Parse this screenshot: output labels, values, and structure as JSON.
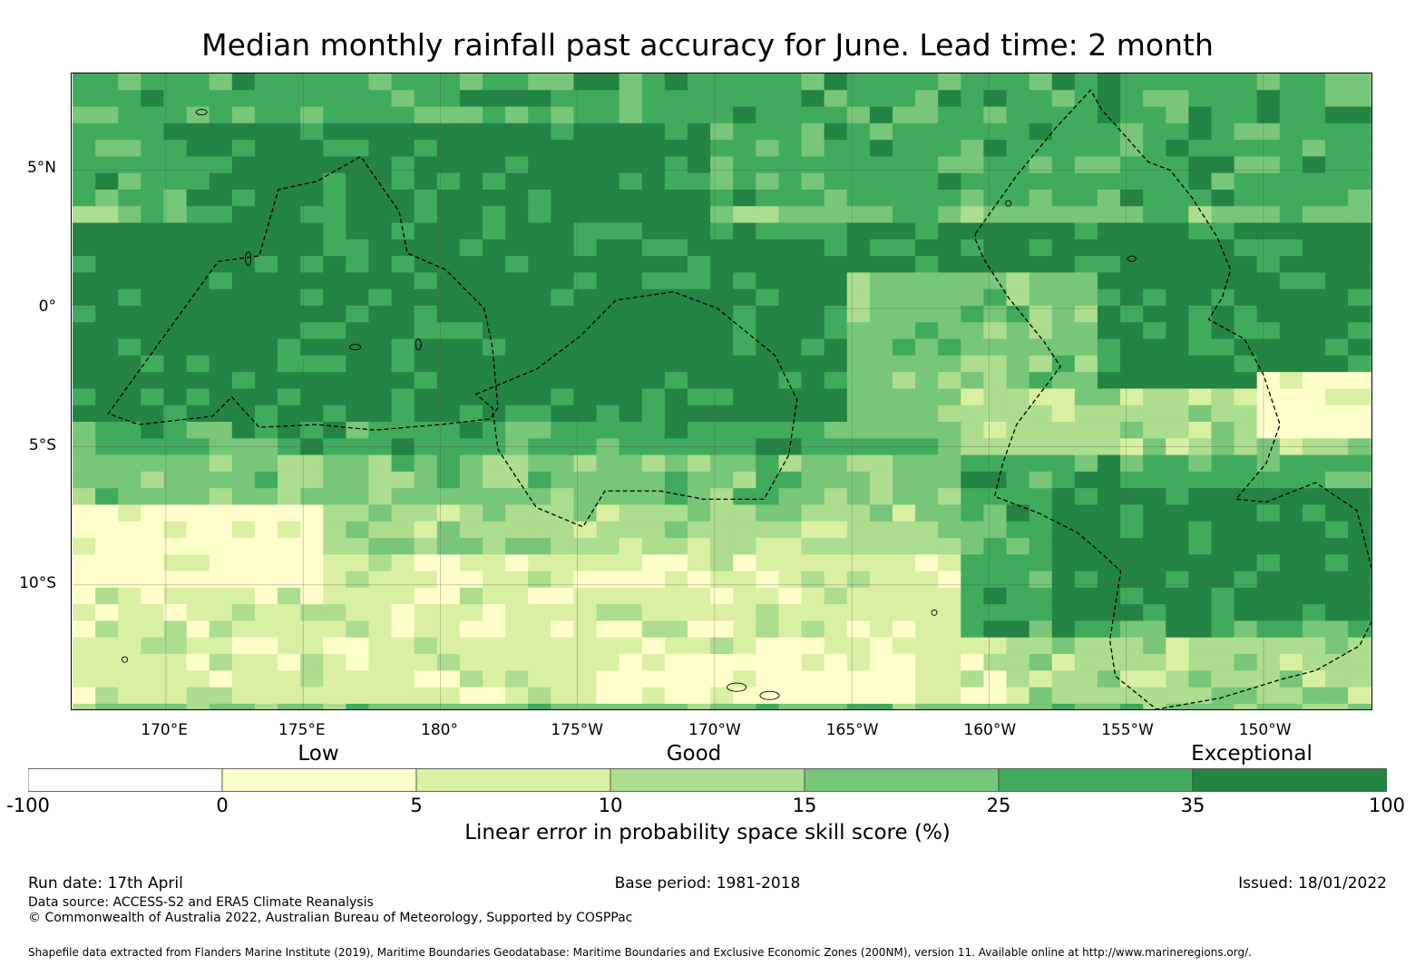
{
  "title": "Median monthly rainfall past accuracy for June. Lead time: 2 month",
  "map": {
    "lat_range": [
      -14.5,
      8.5
    ],
    "lon_range": [
      166.6,
      213.9
    ],
    "lat_labels": [
      {
        "lat": 5,
        "label": "5°N"
      },
      {
        "lat": 0,
        "label": "0°"
      },
      {
        "lat": -5,
        "label": "5°S"
      },
      {
        "lat": -10,
        "label": "10°S"
      }
    ],
    "lon_labels": [
      {
        "lon": 170,
        "label": "170°E"
      },
      {
        "lon": 175,
        "label": "175°E"
      },
      {
        "lon": 180,
        "label": "180°"
      },
      {
        "lon": 185,
        "label": "175°W"
      },
      {
        "lon": 190,
        "label": "170°W"
      },
      {
        "lon": 195,
        "label": "165°W"
      },
      {
        "lon": 200,
        "label": "160°W"
      },
      {
        "lon": 205,
        "label": "155°W"
      },
      {
        "lon": 210,
        "label": "150°W"
      }
    ],
    "skill_zones": [
      {
        "lat_min": 4,
        "lat_max": 8.5,
        "lon_min": 166.6,
        "lon_max": 213.9,
        "score": 30
      },
      {
        "lat_min": 3,
        "lat_max": 6.5,
        "lon_min": 171,
        "lon_max": 190,
        "score": 40
      },
      {
        "lat_min": -4.2,
        "lat_max": 3,
        "lon_min": 166.6,
        "lon_max": 213.9,
        "score": 40
      },
      {
        "lat_min": -5,
        "lat_max": -4.2,
        "lon_min": 166.6,
        "lon_max": 213.9,
        "score": 30
      },
      {
        "lat_min": -4.5,
        "lat_max": 1.5,
        "lon_min": 195,
        "lon_max": 204,
        "score": 20
      },
      {
        "lat_min": -5,
        "lat_max": -3,
        "lon_min": 199,
        "lon_max": 213.9,
        "score": 12
      },
      {
        "lat_min": -4.5,
        "lat_max": -2,
        "lon_min": 210,
        "lon_max": 213.9,
        "score": 3
      },
      {
        "lat_min": -7,
        "lat_max": -5,
        "lon_min": 166.6,
        "lon_max": 213.9,
        "score": 18
      },
      {
        "lat_min": -9,
        "lat_max": -7,
        "lon_min": 166.6,
        "lon_max": 213.9,
        "score": 12
      },
      {
        "lat_min": -14.5,
        "lat_max": -9,
        "lon_min": 166.6,
        "lon_max": 213.9,
        "score": 7
      },
      {
        "lat_min": -10,
        "lat_max": -7,
        "lon_min": 166.6,
        "lon_max": 176,
        "score": 3
      },
      {
        "lat_min": -12,
        "lat_max": -5,
        "lon_min": 199,
        "lon_max": 213.9,
        "score": 30
      },
      {
        "lat_min": -11,
        "lat_max": -6.5,
        "lon_min": 202,
        "lon_max": 213.9,
        "score": 40
      },
      {
        "lat_min": -14.5,
        "lat_max": -12,
        "lon_min": 201,
        "lon_max": 213.9,
        "score": 12
      },
      {
        "lat_min": -14.5,
        "lat_max": -12.5,
        "lon_min": 186,
        "lon_max": 197,
        "score": 3
      }
    ],
    "eez_boundaries": [
      [
        [
          171.9,
          1.7
        ],
        [
          173.4,
          1.9
        ],
        [
          174.1,
          4.3
        ],
        [
          175.5,
          4.6
        ],
        [
          177.1,
          5.5
        ],
        [
          178.5,
          3.5
        ],
        [
          178.8,
          2.0
        ],
        [
          180.2,
          1.4
        ],
        [
          181.6,
          0.0
        ],
        [
          181.9,
          -1.4
        ],
        [
          182.1,
          -3.6
        ],
        [
          181.8,
          -4.0
        ],
        [
          180.0,
          -4.2
        ],
        [
          177.6,
          -4.4
        ],
        [
          175.5,
          -4.2
        ],
        [
          173.4,
          -4.3
        ],
        [
          172.4,
          -3.2
        ],
        [
          171.7,
          -3.9
        ],
        [
          169.0,
          -4.2
        ],
        [
          167.9,
          -3.8
        ]
      ],
      [
        [
          181.3,
          -3.1
        ],
        [
          183.5,
          -2.2
        ],
        [
          185.1,
          -1.0
        ],
        [
          186.4,
          0.3
        ],
        [
          188.5,
          0.6
        ],
        [
          190.1,
          0.0
        ],
        [
          192.2,
          -1.7
        ],
        [
          193.0,
          -3.3
        ],
        [
          192.7,
          -5.3
        ],
        [
          191.8,
          -6.9
        ],
        [
          189.6,
          -6.9
        ],
        [
          188.0,
          -6.6
        ],
        [
          186.0,
          -6.6
        ],
        [
          185.2,
          -7.9
        ],
        [
          183.5,
          -7.2
        ],
        [
          182.1,
          -5.1
        ],
        [
          181.9,
          -3.6
        ]
      ],
      [
        [
          199.5,
          2.7
        ],
        [
          201.0,
          4.8
        ],
        [
          202.4,
          6.5
        ],
        [
          203.7,
          7.9
        ],
        [
          204.1,
          7.2
        ],
        [
          205.8,
          5.3
        ],
        [
          206.6,
          5.0
        ],
        [
          207.4,
          4.0
        ],
        [
          208.3,
          2.6
        ],
        [
          208.8,
          1.4
        ],
        [
          208.5,
          0.4
        ],
        [
          208.0,
          -0.4
        ],
        [
          209.3,
          -1.1
        ],
        [
          210.0,
          -2.4
        ],
        [
          210.6,
          -4.2
        ],
        [
          210.1,
          -5.6
        ],
        [
          209.0,
          -6.9
        ],
        [
          210.1,
          -7.0
        ],
        [
          211.9,
          -6.3
        ],
        [
          213.4,
          -7.3
        ],
        [
          214.0,
          -9.6
        ],
        [
          214.0,
          -11.2
        ],
        [
          213.5,
          -12.2
        ],
        [
          211.9,
          -13.1
        ],
        [
          210.7,
          -13.4
        ],
        [
          208.4,
          -14.1
        ],
        [
          206.1,
          -14.5
        ],
        [
          204.6,
          -13.3
        ],
        [
          204.4,
          -12.0
        ],
        [
          204.8,
          -9.5
        ],
        [
          203.8,
          -8.6
        ],
        [
          203.2,
          -8.1
        ],
        [
          201.8,
          -7.4
        ],
        [
          200.2,
          -6.8
        ],
        [
          200.5,
          -5.6
        ],
        [
          201.0,
          -4.2
        ],
        [
          202.6,
          -2.1
        ],
        [
          202.0,
          -1.2
        ],
        [
          200.7,
          0.4
        ],
        [
          199.8,
          1.8
        ],
        [
          199.5,
          2.5
        ]
      ]
    ],
    "islands": [
      {
        "lon": 190.8,
        "lat": -13.7,
        "rx": 0.35,
        "ry": 0.15
      },
      {
        "lon": 192.0,
        "lat": -14.0,
        "rx": 0.35,
        "ry": 0.15
      },
      {
        "lon": 173.0,
        "lat": 1.8,
        "rx": 0.1,
        "ry": 0.25
      },
      {
        "lon": 176.9,
        "lat": -1.4,
        "rx": 0.2,
        "ry": 0.1
      },
      {
        "lon": 179.2,
        "lat": -1.3,
        "rx": 0.1,
        "ry": 0.2
      },
      {
        "lon": 198.0,
        "lat": -11.0,
        "rx": 0.1,
        "ry": 0.1
      },
      {
        "lon": 205.2,
        "lat": 1.8,
        "rx": 0.15,
        "ry": 0.1
      },
      {
        "lon": 200.7,
        "lat": 3.8,
        "rx": 0.1,
        "ry": 0.1
      },
      {
        "lon": 171.3,
        "lat": 7.1,
        "rx": 0.2,
        "ry": 0.1
      },
      {
        "lon": 168.5,
        "lat": -12.7,
        "rx": 0.1,
        "ry": 0.1
      }
    ]
  },
  "colorbar": {
    "bounds": [
      -100,
      0,
      5,
      10,
      15,
      25,
      35,
      100
    ],
    "colors": [
      "#ffffff",
      "#ffffcc",
      "#d9f0a3",
      "#addd8e",
      "#78c679",
      "#41ab5d",
      "#238443"
    ],
    "tick_labels": [
      "-100",
      "0",
      "5",
      "10",
      "15",
      "25",
      "35",
      "100"
    ],
    "categories": [
      "Low",
      "Good",
      "Exceptional"
    ],
    "label": "Linear error in probability space skill score (%)"
  },
  "footer": {
    "run_date": "Run date: 17th April",
    "base_period": "Base period: 1981-2018",
    "issued": "Issued: 18/01/2022",
    "data_source": "Data source: ACCESS-S2 and ERA5 Climate Reanalysis",
    "copyright": "© Commonwealth of Australia 2022, Australian Bureau of Meteorology, Supported by COSPPac",
    "shapefile": "Shapefile data extracted from Flanders Marine Institute (2019), Maritime Boundaries Geodatabase: Maritime Boundaries and Exclusive Economic Zones (200NM), version 11. Available online at http://www.marineregions.org/."
  }
}
